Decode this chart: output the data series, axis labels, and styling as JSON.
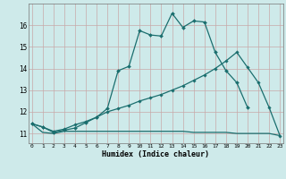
{
  "title": "",
  "xlabel": "Humidex (Indice chaleur)",
  "bg_color": "#ceeaea",
  "grid_color": "#b8d0d0",
  "line_color": "#1a6e6e",
  "curve1_x": [
    0,
    1,
    2,
    3,
    4,
    5,
    6,
    7,
    8,
    9,
    10,
    11,
    12,
    13,
    14,
    15,
    16,
    17,
    18,
    19,
    20
  ],
  "curve1_y": [
    11.45,
    11.3,
    11.05,
    11.15,
    11.25,
    11.5,
    11.75,
    12.15,
    13.9,
    14.1,
    15.75,
    15.55,
    15.5,
    16.55,
    15.9,
    16.2,
    16.15,
    14.75,
    13.9,
    13.35,
    12.2
  ],
  "curve2_x": [
    0,
    1,
    2,
    3,
    4,
    5,
    6,
    7,
    8,
    9,
    10,
    11,
    12,
    13,
    14,
    15,
    16,
    17,
    18,
    19,
    20,
    21,
    22,
    23
  ],
  "curve2_y": [
    11.45,
    11.3,
    11.1,
    11.2,
    11.4,
    11.55,
    11.75,
    12.0,
    12.15,
    12.3,
    12.5,
    12.65,
    12.8,
    13.0,
    13.2,
    13.45,
    13.7,
    14.0,
    14.35,
    14.75,
    14.05,
    13.35,
    12.2,
    10.9
  ],
  "curve3_x": [
    0,
    1,
    2,
    3,
    4,
    5,
    6,
    7,
    8,
    9,
    10,
    11,
    12,
    13,
    14,
    15,
    16,
    17,
    18,
    19,
    20,
    21,
    22,
    23
  ],
  "curve3_y": [
    11.45,
    11.05,
    11.0,
    11.1,
    11.1,
    11.1,
    11.1,
    11.1,
    11.1,
    11.1,
    11.1,
    11.1,
    11.1,
    11.1,
    11.1,
    11.05,
    11.05,
    11.05,
    11.05,
    11.0,
    11.0,
    11.0,
    11.0,
    10.9
  ],
  "ylim": [
    10.55,
    17.0
  ],
  "yticks": [
    11,
    12,
    13,
    14,
    15,
    16
  ],
  "xticks": [
    0,
    1,
    2,
    3,
    4,
    5,
    6,
    7,
    8,
    9,
    10,
    11,
    12,
    13,
    14,
    15,
    16,
    17,
    18,
    19,
    20,
    21,
    22,
    23
  ],
  "xlim": [
    -0.3,
    23.3
  ]
}
